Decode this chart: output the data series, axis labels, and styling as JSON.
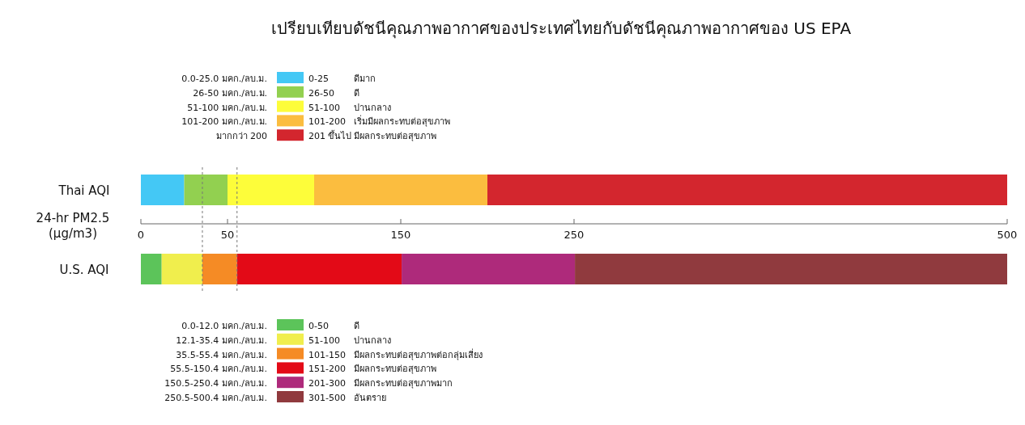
{
  "chart_data": {
    "type": "bar",
    "orientation": "horizontal",
    "stacked": true,
    "title": "เปรียบเทียบดัชนีคุณภาพอากาศของประเทศไทยกับดัชนีคุณภาพอากาศของ US EPA",
    "xlabel": "24-hr PM2.5 (µg/m3)",
    "categories": [
      "Thai AQI",
      "U.S. AQI"
    ],
    "xlim": [
      0,
      500
    ],
    "xticks": [
      0,
      50,
      150,
      250,
      500
    ],
    "legend": "bottom left",
    "series": [
      {
        "name": "0-25",
        "color": "#44c8f5",
        "values": [
          25,
          null
        ]
      },
      {
        "name": "26-50",
        "color": "#92d050",
        "values": [
          25,
          null
        ]
      },
      {
        "name": "51-100",
        "color": "#fdfd3a",
        "values": [
          50,
          null
        ]
      },
      {
        "name": "101-200",
        "color": "#fbbd3f",
        "values": [
          100,
          null
        ]
      },
      {
        "name": "201 ขึ้นไป",
        "color": "#d3262e",
        "values": [
          300,
          null
        ]
      },
      {
        "name": "0-50",
        "color": "#5cc45a",
        "values": [
          null,
          12.0
        ]
      },
      {
        "name": "51-100",
        "color": "#f0ee4d",
        "values": [
          null,
          23.5
        ]
      },
      {
        "name": "101-150",
        "color": "#f58b25",
        "values": [
          null,
          20
        ]
      },
      {
        "name": "151-200",
        "color": "#e30a17",
        "values": [
          null,
          95
        ]
      },
      {
        "name": "201-300",
        "color": "#ae2a7b",
        "values": [
          null,
          100
        ]
      },
      {
        "name": "301-500",
        "color": "#903a3e",
        "values": [
          null,
          249.5
        ]
      }
    ],
    "ref_lines": [
      {
        "axis": "x",
        "value": 35.5,
        "line_style": "dashed",
        "color": "#777777"
      },
      {
        "axis": "x",
        "value": 55.5,
        "line_style": "dashed",
        "color": "#777777"
      }
    ],
    "annotations": [
      "0.0-25.0 มคก./ลบ.ม.",
      "ดีมาก",
      "26-50 มคก./ลบ.ม.",
      "ดี",
      "51-100 มคก./ลบ.ม.",
      "ปานกลาง",
      "101-200 มคก./ลบ.ม.",
      "เริ่มมีผลกระทบต่อสุขภาพ",
      "มากกว่า 200",
      "มีผลกระทบต่อสุขภาพ",
      "0.0-12.0 มคก./ลบ.ม.",
      "ดี",
      "12.1-35.4 มคก./ลบ.ม.",
      "ปานกลาง",
      "35.5-55.4 มคก./ลบ.ม.",
      "มีผลกระทบต่อสุขภาพต่อกลุ่มเสี่ยง",
      "55.5-150.4 มคก./ลบ.ม.",
      "มีผลกระทบต่อสุขภาพ",
      "150.5-250.4 มคก./ลบ.ม.",
      "มีผลกระทบต่อสุขภาพมาก",
      "250.5-500.4 มคก./ลบ.ม.",
      "อันตราย"
    ]
  }
}
